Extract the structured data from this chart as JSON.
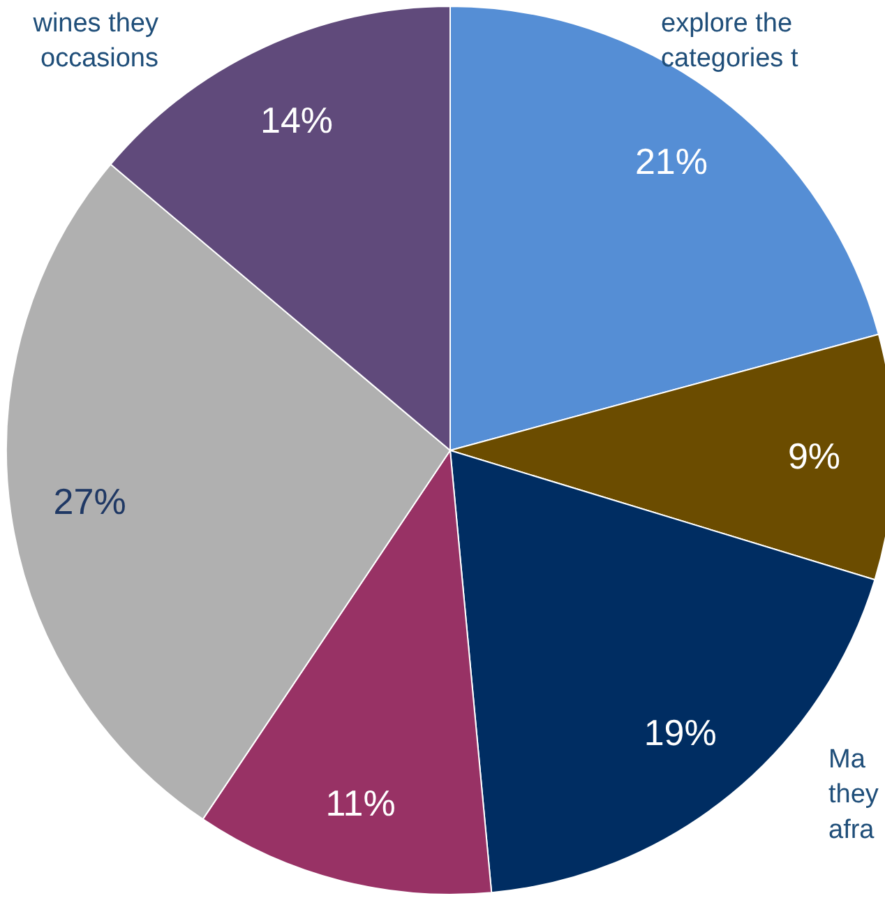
{
  "chart_data": {
    "type": "pie",
    "categories": [
      null,
      null,
      null,
      null,
      null,
      null
    ],
    "values": [
      21,
      9,
      19,
      11,
      27,
      14
    ],
    "colors": [
      "#558ed5",
      "#6b4c00",
      "#002d62",
      "#983265",
      "#b0b0b0",
      "#604a7b"
    ],
    "value_labels": [
      "21%",
      "9%",
      "19%",
      "11%",
      "27%",
      "14%"
    ],
    "annotations": [
      "wines they\noccasions",
      "explore the\ncategories t",
      "Ma\nthey\nafra"
    ]
  }
}
